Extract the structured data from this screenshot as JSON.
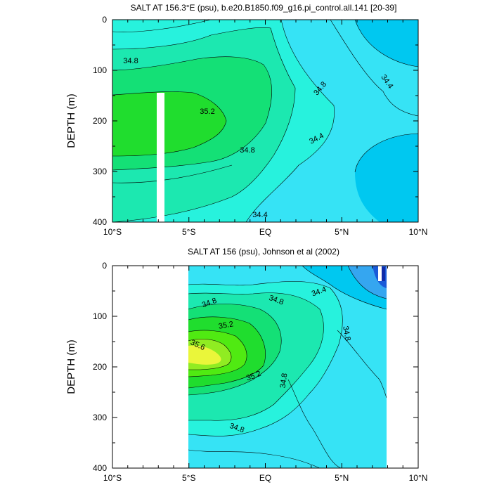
{
  "chart_data": [
    {
      "type": "contour",
      "title": "SALT AT 156.3°E (psu), b.e20.B1850.f09_g16.pi_control.all.141 [20-39]",
      "ylabel": "DEPTH (m)",
      "xlabel": "",
      "x_ticks": [
        "10°S",
        "5°S",
        "EQ",
        "5°N",
        "10°N"
      ],
      "y_ticks": [
        "0",
        "100",
        "200",
        "300",
        "400"
      ],
      "xlim": [
        -10,
        10
      ],
      "ylim": [
        400,
        0
      ],
      "contour_labels": [
        "34.8",
        "35.2",
        "34.8",
        "34.8",
        "34.4",
        "34.4",
        "34.4"
      ]
    },
    {
      "type": "contour",
      "title": "SALT AT 156 (psu), Johnson et al (2002)",
      "ylabel": "DEPTH (m)",
      "xlabel": "",
      "x_ticks": [
        "10°S",
        "5°S",
        "EQ",
        "5°N",
        "10°N"
      ],
      "y_ticks": [
        "0",
        "100",
        "200",
        "300",
        "400"
      ],
      "xlim": [
        -10,
        10
      ],
      "ylim": [
        400,
        0
      ],
      "data_xrange": [
        -5,
        8
      ],
      "contour_labels": [
        "34.8",
        "34.8",
        "34.4",
        "35.2",
        "35.6",
        "35.2",
        "34.8",
        "34.8",
        "34.8"
      ]
    }
  ],
  "colors": {
    "c_lt344": "#00c8f0",
    "c_344": "#36e3f5",
    "c_346": "#27f2dd",
    "c_348": "#1ce8b0",
    "c_350": "#14e076",
    "c_352": "#20dd2e",
    "c_354": "#50ea12",
    "c_356": "#90ec22",
    "c_358": "#eaf63a",
    "deep1": "#35a6f0",
    "deep2": "#1a5ad8",
    "deep3": "#102aa8"
  }
}
